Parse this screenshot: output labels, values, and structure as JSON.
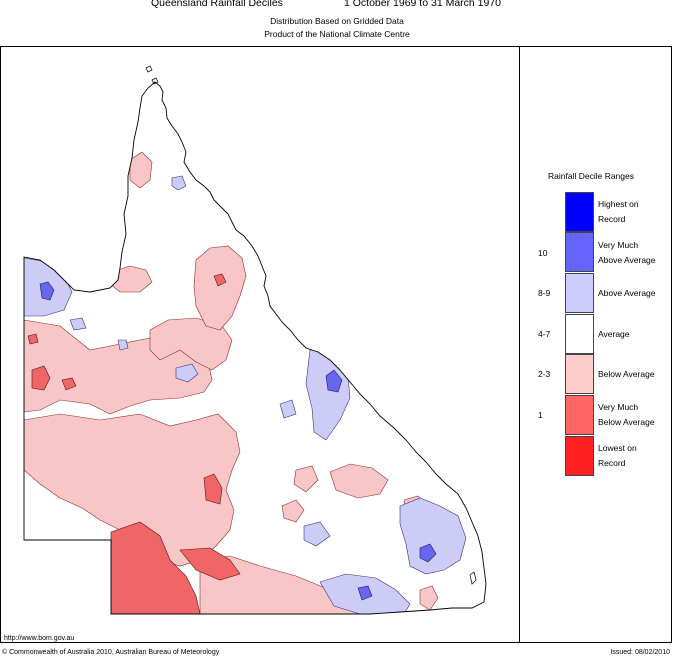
{
  "header": {
    "title": "Queensland Rainfall Deciles",
    "period": "1 October 1969 to 31 March 1970",
    "subtitle1": "Distribution Based on Gridded Data",
    "subtitle2": "Product of the National Climate Centre"
  },
  "legend": {
    "title": "Rainfall Decile Ranges",
    "items": [
      {
        "range": "",
        "label_lines": [
          "Highest on",
          "Record"
        ],
        "color": "#0000ff"
      },
      {
        "range": "10",
        "label_lines": [
          "Very Much",
          "Above Average"
        ],
        "color": "#6666ff"
      },
      {
        "range": "8-9",
        "label_lines": [
          "Above Average"
        ],
        "color": "#ccccff"
      },
      {
        "range": "4-7",
        "label_lines": [
          "Average"
        ],
        "color": "#ffffff"
      },
      {
        "range": "2-3",
        "label_lines": [
          "Below Average"
        ],
        "color": "#ffcccc"
      },
      {
        "range": "1",
        "label_lines": [
          "Very Much",
          "Below Average"
        ],
        "color": "#ff6666"
      },
      {
        "range": "",
        "label_lines": [
          "Lowest on",
          "Record"
        ],
        "color": "#ff2222"
      }
    ]
  },
  "footer": {
    "url": "http://www.bom.gov.au",
    "copyright": "© Commonwealth of Australia 2010, Australian Bureau of Meteorology",
    "issued": "Issued: 08/02/2010"
  },
  "colors": {
    "below": "#f8c6c6",
    "very_much_below": "#f06666",
    "above": "#ccccf7",
    "very_much_above": "#6666ee",
    "outline": "#000000"
  }
}
